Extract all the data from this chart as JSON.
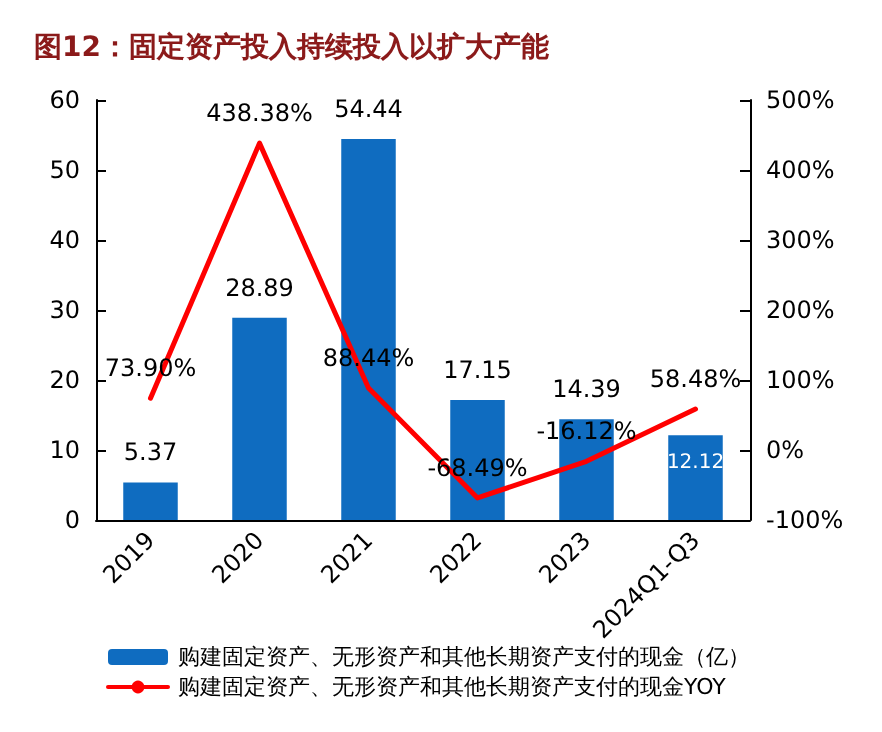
{
  "chart_data": {
    "type": "bar",
    "title": "图12：固定资产投入持续投入以扩大产能",
    "categories": [
      "2019",
      "2020",
      "2021",
      "2022",
      "2023",
      "2024Q1-Q3"
    ],
    "series": [
      {
        "name": "购建固定资产、无形资产和其他长期资产支付的现金（亿）",
        "color": "#0f6cc0",
        "values": [
          5.37,
          28.89,
          54.44,
          17.15,
          14.39,
          12.12
        ],
        "value_labels": [
          "5.37",
          "28.89",
          "54.44",
          "17.15",
          "14.39",
          "12.12"
        ]
      },
      {
        "name": "购建固定资产、无形资产和其他长期资产支付的现金YOY",
        "type": "line",
        "axis": "y2",
        "color": "#ff0000",
        "values": [
          73.9,
          438.38,
          88.44,
          -68.49,
          -16.12,
          58.48
        ],
        "value_labels": [
          "73.90%",
          "438.38%",
          "88.44%",
          "-68.49%",
          "-16.12%",
          "58.48%"
        ]
      }
    ],
    "ylim": [
      0,
      60
    ],
    "yticks": [
      0,
      10,
      20,
      30,
      40,
      50,
      60
    ],
    "y2lim": [
      -100,
      500
    ],
    "y2ticks": [
      {
        "value": -100,
        "label": "-100%"
      },
      {
        "value": 0,
        "label": "0%"
      },
      {
        "value": 100,
        "label": "100%"
      },
      {
        "value": 200,
        "label": "200%"
      },
      {
        "value": 300,
        "label": "300%"
      },
      {
        "value": 400,
        "label": "400%"
      },
      {
        "value": 500,
        "label": "500%"
      }
    ],
    "legend": "bottom",
    "grid": false,
    "marker": "none",
    "line_style": "solid"
  }
}
